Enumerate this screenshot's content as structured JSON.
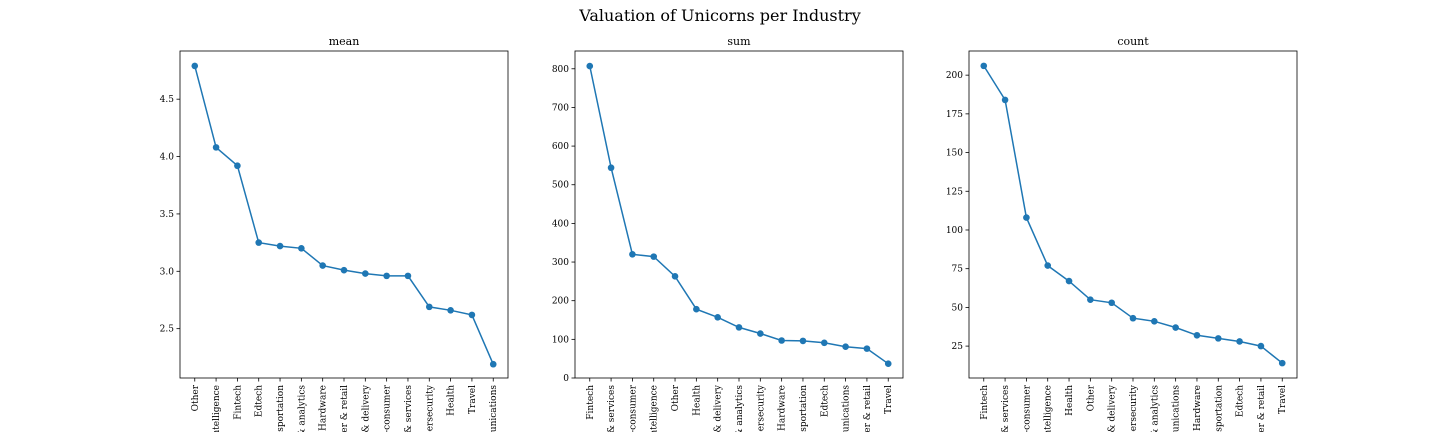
{
  "figure": {
    "suptitle": "Valuation of Unicorns per Industry"
  },
  "chart_data": [
    {
      "type": "line",
      "title": "mean",
      "xlabel": "",
      "ylabel": "",
      "categories": [
        "Other",
        "Artificial intelligence",
        "Fintech",
        "Edtech",
        "Auto & transportation",
        "Data management & analytics",
        "Hardware",
        "Consumer & retail",
        "Supply chain, logistics, & delivery",
        "E-commerce & direct-to-consumer",
        "Internet software & services",
        "Cybersecurity",
        "Health",
        "Travel",
        "Mobile & telecommunications"
      ],
      "tick_labels": [
        "Other",
        "intelligence",
        "Fintech",
        "Edtech",
        "nsportation",
        "& analytics",
        "Hardware",
        "ner & retail",
        "& delivery",
        "-consumer",
        "& services",
        "bersecurity",
        "Health",
        "Travel",
        "munications"
      ],
      "values": [
        4.79,
        4.08,
        3.92,
        3.25,
        3.22,
        3.2,
        3.05,
        3.01,
        2.98,
        2.96,
        2.96,
        2.69,
        2.66,
        2.62,
        2.19
      ],
      "ylim": [
        2.07,
        4.92
      ],
      "yticks": [
        2.5,
        3.0,
        3.5,
        4.0,
        4.5
      ],
      "ytick_labels": [
        "2.5",
        "3.0",
        "3.5",
        "4.0",
        "4.5"
      ],
      "color": "#1f77b4",
      "grid": false
    },
    {
      "type": "line",
      "title": "sum",
      "xlabel": "",
      "ylabel": "",
      "categories": [
        "Fintech",
        "Internet software & services",
        "E-commerce & direct-to-consumer",
        "Artificial intelligence",
        "Other",
        "Health",
        "Supply chain, logistics, & delivery",
        "Data management & analytics",
        "Cybersecurity",
        "Hardware",
        "Auto & transportation",
        "Edtech",
        "Mobile & telecommunications",
        "Consumer & retail",
        "Travel"
      ],
      "tick_labels": [
        "Fintech",
        "& services",
        "-consumer",
        "intelligence",
        "Other",
        "Health",
        "& delivery",
        "& analytics",
        "bersecurity",
        "Hardware",
        "nsportation",
        "Edtech",
        "munications",
        "ner & retail",
        "Travel"
      ],
      "values": [
        807,
        544,
        320,
        314,
        263,
        178,
        157,
        131,
        115,
        97,
        96,
        91,
        81,
        76,
        37
      ],
      "ylim": [
        0,
        846
      ],
      "yticks": [
        0,
        100,
        200,
        300,
        400,
        500,
        600,
        700,
        800
      ],
      "ytick_labels": [
        "0",
        "100",
        "200",
        "300",
        "400",
        "500",
        "600",
        "700",
        "800"
      ],
      "color": "#1f77b4",
      "grid": false
    },
    {
      "type": "line",
      "title": "count",
      "xlabel": "",
      "ylabel": "",
      "categories": [
        "Fintech",
        "Internet software & services",
        "E-commerce & direct-to-consumer",
        "Artificial intelligence",
        "Health",
        "Other",
        "Supply chain, logistics, & delivery",
        "Cybersecurity",
        "Data management & analytics",
        "Mobile & telecommunications",
        "Hardware",
        "Auto & transportation",
        "Edtech",
        "Consumer & retail",
        "Travel"
      ],
      "tick_labels": [
        "Fintech",
        "& services",
        "-consumer",
        "intelligence",
        "Health",
        "Other",
        "& delivery",
        "bersecurity",
        "& analytics",
        "munications",
        "Hardware",
        "nsportation",
        "Edtech",
        "ner & retail",
        "Travel"
      ],
      "values": [
        206,
        184,
        108,
        77,
        67,
        55,
        53,
        43,
        41,
        37,
        32,
        30,
        28,
        25,
        14
      ],
      "ylim": [
        4.4,
        215.6
      ],
      "yticks": [
        25,
        50,
        75,
        100,
        125,
        150,
        175,
        200
      ],
      "ytick_labels": [
        "25",
        "50",
        "75",
        "100",
        "125",
        "150",
        "175",
        "200"
      ],
      "color": "#1f77b4",
      "grid": false
    }
  ]
}
